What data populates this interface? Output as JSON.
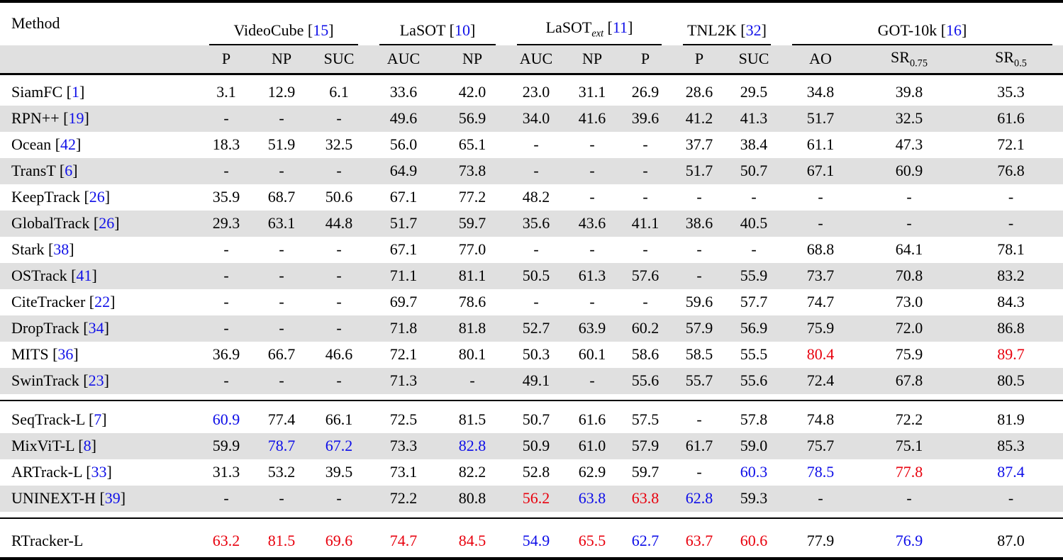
{
  "colors": {
    "best": "#e8000d",
    "second_best": "#0d0de8",
    "citation": "#1010e8",
    "stripe": "#e0e0e0",
    "rule": "#000000"
  },
  "table": {
    "method_header": "Method",
    "groups": [
      {
        "label": "VideoCube",
        "cite": "15",
        "cols": [
          "P",
          "NP",
          "SUC"
        ]
      },
      {
        "label": "LaSOT",
        "cite": "10",
        "cols": [
          "AUC",
          "NP"
        ]
      },
      {
        "label": "LaSOT",
        "sub": "ext",
        "cite": "11",
        "cols": [
          "AUC",
          "NP",
          "P"
        ]
      },
      {
        "label": "TNL2K",
        "cite": "32",
        "cols": [
          "P",
          "SUC"
        ]
      },
      {
        "label": "GOT-10k",
        "cite": "16",
        "cols": [
          "AO",
          {
            "label": "SR",
            "sub": "0.75"
          },
          {
            "label": "SR",
            "sub": "0.5"
          }
        ]
      }
    ],
    "sections": [
      [
        {
          "method": "SiamFC",
          "cite": "1",
          "values": [
            "3.1",
            "12.9",
            "6.1",
            "33.6",
            "42.0",
            "23.0",
            "31.1",
            "26.9",
            "28.6",
            "29.5",
            "34.8",
            "39.8",
            "35.3"
          ],
          "hl": {}
        },
        {
          "method": "RPN++",
          "cite": "19",
          "values": [
            "-",
            "-",
            "-",
            "49.6",
            "56.9",
            "34.0",
            "41.6",
            "39.6",
            "41.2",
            "41.3",
            "51.7",
            "32.5",
            "61.6"
          ],
          "hl": {}
        },
        {
          "method": "Ocean",
          "cite": "42",
          "values": [
            "18.3",
            "51.9",
            "32.5",
            "56.0",
            "65.1",
            "-",
            "-",
            "-",
            "37.7",
            "38.4",
            "61.1",
            "47.3",
            "72.1"
          ],
          "hl": {}
        },
        {
          "method": "TransT",
          "cite": "6",
          "values": [
            "-",
            "-",
            "-",
            "64.9",
            "73.8",
            "-",
            "-",
            "-",
            "51.7",
            "50.7",
            "67.1",
            "60.9",
            "76.8"
          ],
          "hl": {}
        },
        {
          "method": "KeepTrack",
          "cite": "26",
          "values": [
            "35.9",
            "68.7",
            "50.6",
            "67.1",
            "77.2",
            "48.2",
            "-",
            "-",
            "-",
            "-",
            "-",
            "-",
            "-"
          ],
          "hl": {}
        },
        {
          "method": "GlobalTrack",
          "cite": "26",
          "values": [
            "29.3",
            "63.1",
            "44.8",
            "51.7",
            "59.7",
            "35.6",
            "43.6",
            "41.1",
            "38.6",
            "40.5",
            "-",
            "-",
            "-"
          ],
          "hl": {}
        },
        {
          "method": "Stark",
          "cite": "38",
          "values": [
            "-",
            "-",
            "-",
            "67.1",
            "77.0",
            "-",
            "-",
            "-",
            "-",
            "-",
            "68.8",
            "64.1",
            "78.1"
          ],
          "hl": {}
        },
        {
          "method": "OSTrack",
          "cite": "41",
          "values": [
            "-",
            "-",
            "-",
            "71.1",
            "81.1",
            "50.5",
            "61.3",
            "57.6",
            "-",
            "55.9",
            "73.7",
            "70.8",
            "83.2"
          ],
          "hl": {}
        },
        {
          "method": "CiteTracker",
          "cite": "22",
          "values": [
            "-",
            "-",
            "-",
            "69.7",
            "78.6",
            "-",
            "-",
            "-",
            "59.6",
            "57.7",
            "74.7",
            "73.0",
            "84.3"
          ],
          "hl": {}
        },
        {
          "method": "DropTrack",
          "cite": "34",
          "values": [
            "-",
            "-",
            "-",
            "71.8",
            "81.8",
            "52.7",
            "63.9",
            "60.2",
            "57.9",
            "56.9",
            "75.9",
            "72.0",
            "86.8"
          ],
          "hl": {}
        },
        {
          "method": "MITS",
          "cite": "36",
          "values": [
            "36.9",
            "66.7",
            "46.6",
            "72.1",
            "80.1",
            "50.3",
            "60.1",
            "58.6",
            "58.5",
            "55.5",
            "80.4",
            "75.9",
            "89.7"
          ],
          "hl": {
            "10": "r",
            "12": "r"
          }
        },
        {
          "method": "SwinTrack",
          "cite": "23",
          "values": [
            "-",
            "-",
            "-",
            "71.3",
            "-",
            "49.1",
            "-",
            "55.6",
            "55.7",
            "55.6",
            "72.4",
            "67.8",
            "80.5"
          ],
          "hl": {}
        }
      ],
      [
        {
          "method": "SeqTrack-L",
          "cite": "7",
          "values": [
            "60.9",
            "77.4",
            "66.1",
            "72.5",
            "81.5",
            "50.7",
            "61.6",
            "57.5",
            "-",
            "57.8",
            "74.8",
            "72.2",
            "81.9"
          ],
          "hl": {
            "0": "b"
          }
        },
        {
          "method": "MixViT-L",
          "cite": "8",
          "values": [
            "59.9",
            "78.7",
            "67.2",
            "73.3",
            "82.8",
            "50.9",
            "61.0",
            "57.9",
            "61.7",
            "59.0",
            "75.7",
            "75.1",
            "85.3"
          ],
          "hl": {
            "1": "b",
            "2": "b",
            "4": "b"
          }
        },
        {
          "method": "ARTrack-L",
          "cite": "33",
          "values": [
            "31.3",
            "53.2",
            "39.5",
            "73.1",
            "82.2",
            "52.8",
            "62.9",
            "59.7",
            "-",
            "60.3",
            "78.5",
            "77.8",
            "87.4"
          ],
          "hl": {
            "9": "b",
            "10": "b",
            "11": "r",
            "12": "b"
          }
        },
        {
          "method": "UNINEXT-H",
          "cite": "39",
          "values": [
            "-",
            "-",
            "-",
            "72.2",
            "80.8",
            "56.2",
            "63.8",
            "63.8",
            "62.8",
            "59.3",
            "-",
            "-",
            "-"
          ],
          "hl": {
            "5": "r",
            "6": "b",
            "7": "r",
            "8": "b"
          }
        }
      ],
      [
        {
          "method": "RTracker-L",
          "cite": null,
          "values": [
            "63.2",
            "81.5",
            "69.6",
            "74.7",
            "84.5",
            "54.9",
            "65.5",
            "62.7",
            "63.7",
            "60.6",
            "77.9",
            "76.9",
            "87.0"
          ],
          "hl": {
            "0": "r",
            "1": "r",
            "2": "r",
            "3": "r",
            "4": "r",
            "5": "b",
            "6": "r",
            "7": "b",
            "8": "r",
            "9": "r",
            "11": "b"
          }
        }
      ]
    ]
  }
}
